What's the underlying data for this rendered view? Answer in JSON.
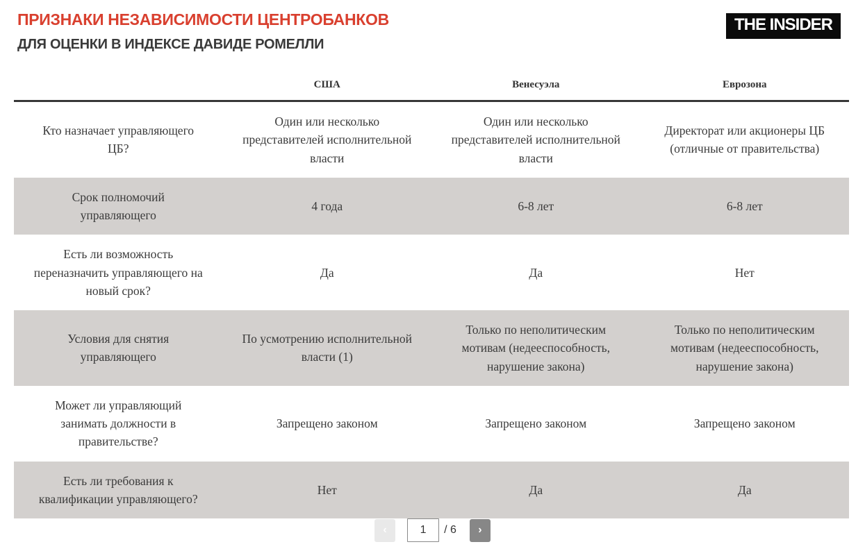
{
  "header": {
    "title": "ПРИЗНАКИ НЕЗАВИСИМОСТИ ЦЕНТРОБАНКОВ",
    "subtitle": "ДЛЯ ОЦЕНКИ В ИНДЕКСЕ ДАВИДЕ РОМЕЛЛИ",
    "logo_text": "THE INSIDER"
  },
  "chart_data": {
    "type": "table",
    "title": "ПРИЗНАКИ НЕЗАВИСИМОСТИ ЦЕНТРОБАНКОВ",
    "subtitle": "ДЛЯ ОЦЕНКИ В ИНДЕКСЕ ДАВИДЕ РОМЕЛЛИ",
    "columns": [
      "",
      "США",
      "Венесуэла",
      "Еврозона"
    ],
    "rows": [
      {
        "label": "Кто назначает управляющего ЦБ?",
        "cells": [
          "Один или несколько представителей исполнительной власти",
          "Один или несколько представителей исполнительной власти",
          "Директорат или акционеры ЦБ (отличные от правительства)"
        ],
        "shaded": false
      },
      {
        "label": "Срок полномочий управляющего",
        "cells": [
          "4 года",
          "6-8 лет",
          "6-8 лет"
        ],
        "shaded": true
      },
      {
        "label": "Есть ли возможность переназначить управляющего на новый срок?",
        "cells": [
          "Да",
          "Да",
          "Нет"
        ],
        "shaded": false
      },
      {
        "label": "Условия для снятия управляющего",
        "cells": [
          "По усмотрению исполнительной власти (1)",
          "Только по неполитическим мотивам (недееспособность, нарушение закона)",
          "Только по неполитическим мотивам (недееспособность, нарушение закона)"
        ],
        "shaded": true
      },
      {
        "label": "Может ли управляющий занимать должности в правительстве?",
        "cells": [
          "Запрещено законом",
          "Запрещено законом",
          "Запрещено законом"
        ],
        "shaded": false
      },
      {
        "label": "Есть ли требования к квалификации управляющего?",
        "cells": [
          "Нет",
          "Да",
          "Да"
        ],
        "shaded": true
      }
    ],
    "layout": {
      "shaded_row_indices": [
        1,
        3,
        5
      ],
      "grid": "horizontal header rule only"
    }
  },
  "pagination": {
    "prev_icon": "‹",
    "next_icon": "›",
    "current_page": "1",
    "page_total_label": "/ 6",
    "total_pages": "6"
  },
  "colors": {
    "accent_red": "#d9402f",
    "heading_dark": "#3a3a3a",
    "table_text": "#3b3b3b",
    "row_shade": "#d3d0ce",
    "header_rule": "#383838",
    "logo_bg": "#0b0b0b",
    "logo_text": "#ffffff",
    "prev_button_bg": "#e9e9e9",
    "next_button_bg": "#878787"
  }
}
